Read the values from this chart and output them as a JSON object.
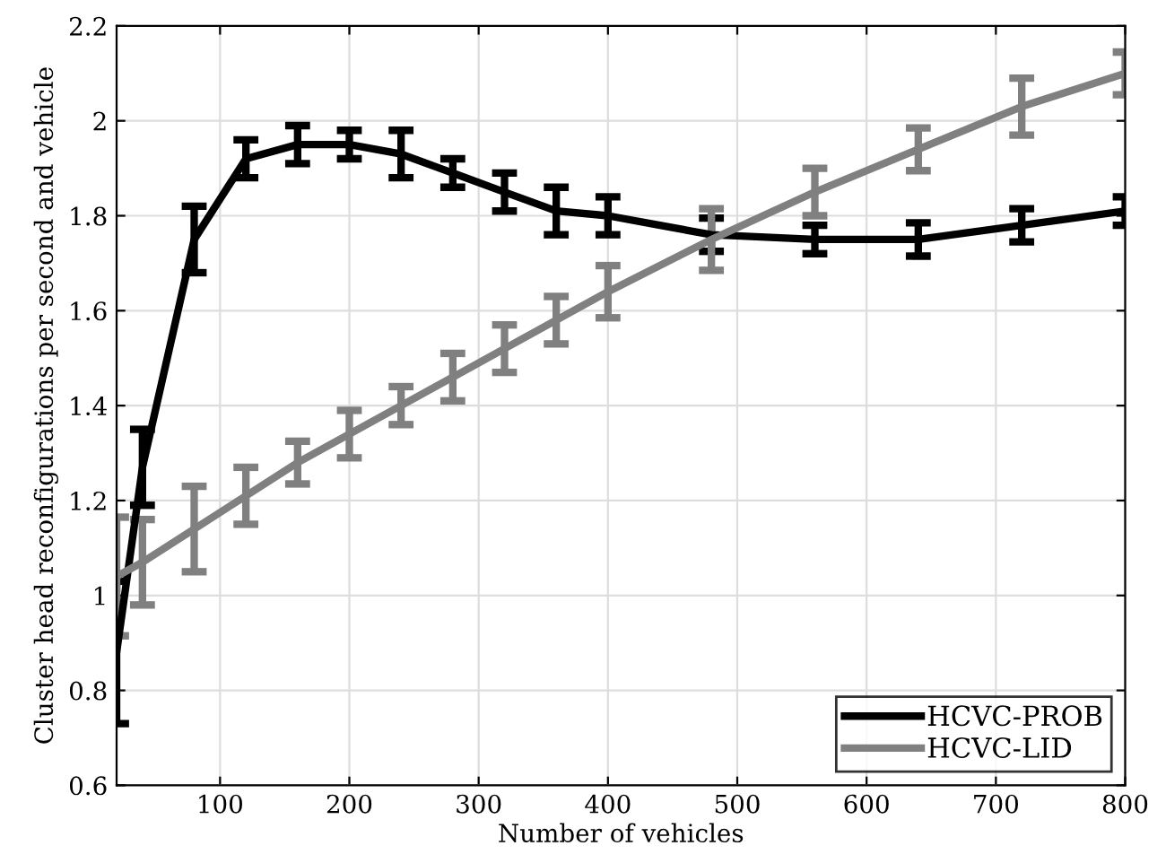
{
  "chart_data": {
    "type": "line",
    "xlabel": "Number of vehicles",
    "ylabel": "Cluster head reconfigurations per second and vehicle",
    "x": [
      20,
      40,
      80,
      120,
      160,
      200,
      240,
      280,
      320,
      360,
      400,
      480,
      560,
      640,
      720,
      800
    ],
    "series": [
      {
        "name": "HCVC-PROB",
        "color": "#000000",
        "values": [
          0.88,
          1.27,
          1.75,
          1.92,
          1.95,
          1.95,
          1.93,
          1.89,
          1.85,
          1.81,
          1.8,
          1.76,
          1.75,
          1.75,
          1.78,
          1.81
        ],
        "errors": [
          0.15,
          0.08,
          0.07,
          0.04,
          0.04,
          0.03,
          0.05,
          0.03,
          0.04,
          0.05,
          0.04,
          0.035,
          0.03,
          0.035,
          0.035,
          0.03
        ]
      },
      {
        "name": "HCVC-LID",
        "color": "#808080",
        "values": [
          1.04,
          1.07,
          1.14,
          1.21,
          1.28,
          1.34,
          1.4,
          1.46,
          1.52,
          1.58,
          1.64,
          1.75,
          1.85,
          1.94,
          2.03,
          2.1
        ],
        "errors": [
          0.125,
          0.09,
          0.09,
          0.06,
          0.045,
          0.05,
          0.04,
          0.05,
          0.05,
          0.05,
          0.055,
          0.065,
          0.05,
          0.045,
          0.06,
          0.045
        ]
      }
    ],
    "xlim": [
      20,
      800
    ],
    "ylim": [
      0.6,
      2.2
    ],
    "xticks": [
      100,
      200,
      300,
      400,
      500,
      600,
      700,
      800
    ],
    "yticks": [
      0.6,
      0.8,
      1,
      1.2,
      1.4,
      1.6,
      1.8,
      2,
      2.2
    ],
    "grid": true,
    "legend": "bottom right",
    "marker": "none",
    "line_style": "solid"
  }
}
